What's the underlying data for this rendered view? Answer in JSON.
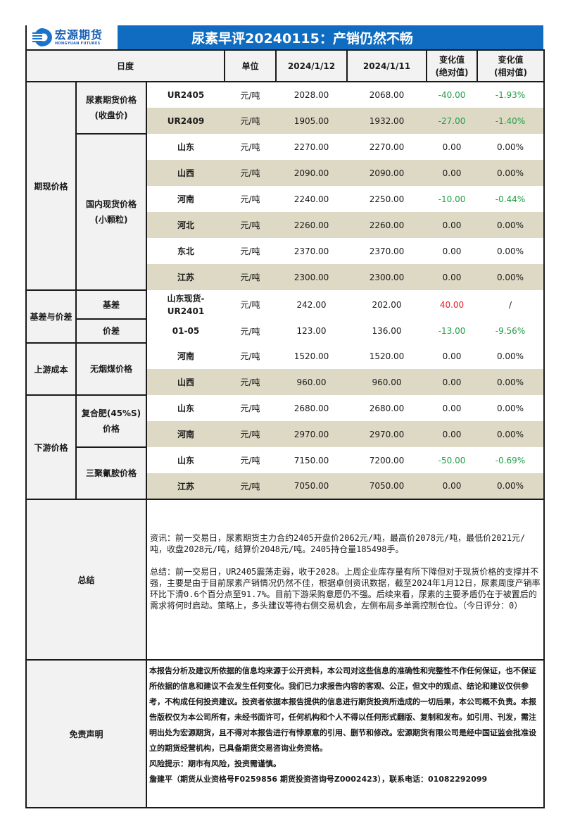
{
  "header": {
    "logo": {
      "cn": "宏源期货",
      "en": "HONGYUAN FUTURES"
    },
    "title": "尿素早评20240115：产销仍然不畅",
    "brand_color": "#0f6cc0"
  },
  "columns": {
    "daily": "日度",
    "unit": "单位",
    "date1": "2024/1/12",
    "date2": "2024/1/11",
    "abs_change_l1": "变化值",
    "abs_change_l2": "(绝对值)",
    "rel_change_l1": "变化值",
    "rel_change_l2": "(相对值)"
  },
  "sections": [
    {
      "category": "期现价格",
      "groups": [
        {
          "name_l1": "尿素期货价格",
          "name_l2": "(收盘价)",
          "rows": [
            {
              "item": "UR2405",
              "unit": "元/吨",
              "v1": "2028.00",
              "v2": "2068.00",
              "abs": "-40.00",
              "rel": "-1.93%",
              "trend": "neg"
            },
            {
              "item": "UR2409",
              "unit": "元/吨",
              "v1": "1905.00",
              "v2": "1932.00",
              "abs": "-27.00",
              "rel": "-1.40%",
              "trend": "neg"
            }
          ]
        },
        {
          "name_l1": "国内现货价格",
          "name_l2": "(小颗粒)",
          "rows": [
            {
              "item": "山东",
              "unit": "元/吨",
              "v1": "2270.00",
              "v2": "2270.00",
              "abs": "0.00",
              "rel": "0.00%",
              "trend": "neu"
            },
            {
              "item": "山西",
              "unit": "元/吨",
              "v1": "2090.00",
              "v2": "2090.00",
              "abs": "0.00",
              "rel": "0.00%",
              "trend": "neu"
            },
            {
              "item": "河南",
              "unit": "元/吨",
              "v1": "2240.00",
              "v2": "2250.00",
              "abs": "-10.00",
              "rel": "-0.44%",
              "trend": "neg"
            },
            {
              "item": "河北",
              "unit": "元/吨",
              "v1": "2260.00",
              "v2": "2260.00",
              "abs": "0.00",
              "rel": "0.00%",
              "trend": "neu"
            },
            {
              "item": "东北",
              "unit": "元/吨",
              "v1": "2370.00",
              "v2": "2370.00",
              "abs": "0.00",
              "rel": "0.00%",
              "trend": "neu"
            },
            {
              "item": "江苏",
              "unit": "元/吨",
              "v1": "2300.00",
              "v2": "2300.00",
              "abs": "0.00",
              "rel": "0.00%",
              "trend": "neu"
            }
          ]
        }
      ]
    },
    {
      "category": "基差与价差",
      "groups": [
        {
          "name_l1": "基差",
          "rows": [
            {
              "item_l1": "山东现货-",
              "item_l2": "UR2401",
              "unit": "元/吨",
              "v1": "242.00",
              "v2": "202.00",
              "abs": "40.00",
              "rel": "/",
              "trend": "pos"
            }
          ]
        },
        {
          "name_l1": "价差",
          "rows": [
            {
              "item": "01-05",
              "unit": "元/吨",
              "v1": "123.00",
              "v2": "136.00",
              "abs": "-13.00",
              "rel": "-9.56%",
              "trend": "neg"
            }
          ]
        }
      ]
    },
    {
      "category": "上游成本",
      "groups": [
        {
          "name_l1": "无烟煤价格",
          "rows": [
            {
              "item": "河南",
              "unit": "元/吨",
              "v1": "1520.00",
              "v2": "1520.00",
              "abs": "0.00",
              "rel": "0.00%",
              "trend": "neu"
            },
            {
              "item": "山西",
              "unit": "元/吨",
              "v1": "960.00",
              "v2": "960.00",
              "abs": "0.00",
              "rel": "0.00%",
              "trend": "neu"
            }
          ]
        }
      ]
    },
    {
      "category": "下游价格",
      "groups": [
        {
          "name_l1": "复合肥(45%S)",
          "name_l2": "价格",
          "rows": [
            {
              "item": "山东",
              "unit": "元/吨",
              "v1": "2680.00",
              "v2": "2680.00",
              "abs": "0.00",
              "rel": "0.00%",
              "trend": "neu"
            },
            {
              "item": "河南",
              "unit": "元/吨",
              "v1": "2970.00",
              "v2": "2970.00",
              "abs": "0.00",
              "rel": "0.00%",
              "trend": "neu"
            }
          ]
        },
        {
          "name_l1": "三聚氰胺价格",
          "rows": [
            {
              "item": "山东",
              "unit": "元/吨",
              "v1": "7150.00",
              "v2": "7200.00",
              "abs": "-50.00",
              "rel": "-0.69%",
              "trend": "neg"
            },
            {
              "item": "江苏",
              "unit": "元/吨",
              "v1": "7050.00",
              "v2": "7050.00",
              "abs": "0.00",
              "rel": "0.00%",
              "trend": "neu"
            }
          ]
        }
      ]
    }
  ],
  "summary": {
    "label": "总结",
    "info": "资讯：前一交易日，尿素期货主力合约2405开盘价2062元/吨，最高价2078元/吨，最低价2021元/吨，收盘2028元/吨，结算价2048元/吨。2405持仓量185498手。",
    "conclusion": "总结：前一交易日，UR2405震荡走弱，收于2028。上周企业库存量有所下降但对于现货价格的支撑并不强，主要是由于目前尿素产销情况仍然不佳，根据卓创资讯数据，截至2024年1月12日，尿素周度产销率环比下滑0.6个百分点至91.7%。目前下游采购意愿仍不强。后续来看，尿素的主要矛盾仍在于被置后的需求将何时启动。策略上，多头建议等待右侧交易机会，左侧布局多单需控制仓位。（今日评分：0）"
  },
  "disclaimer": {
    "label": "免责声明",
    "body": "本报告分析及建议所依据的信息均来源于公开资料，本公司对这些信息的准确性和完整性不作任何保证，也不保证所依据的信息和建议不会发生任何变化。我们已力求报告内容的客观、公正，但文中的观点、结论和建议仅供参考，不构成任何投资建议。投资者依据本报告提供的信息进行期货投资所造成的一切后果，本公司概不负责。本报告版权仅为本公司所有，未经书面许可，任何机构和个人不得以任何形式翻版、复制和发布。如引用、刊发，需注明出处为宏源期货，且不得对本报告进行有悖原意的引用、删节和修改。宏源期货有限公司是经中国证监会批准设立的期货经营机构，已具备期货交易咨询业务资格。",
    "risk": "风险提示：期市有风险，投资需谨慎。",
    "contact": "詹建平（期货从业资格号F0259856 期货投资咨询号Z0002423），联系电话：01082292099"
  },
  "colors": {
    "positive": "#e0202a",
    "negative": "#1fa045",
    "alt_row": "#ddd9c4",
    "label_bg": "#f2f2f2"
  }
}
